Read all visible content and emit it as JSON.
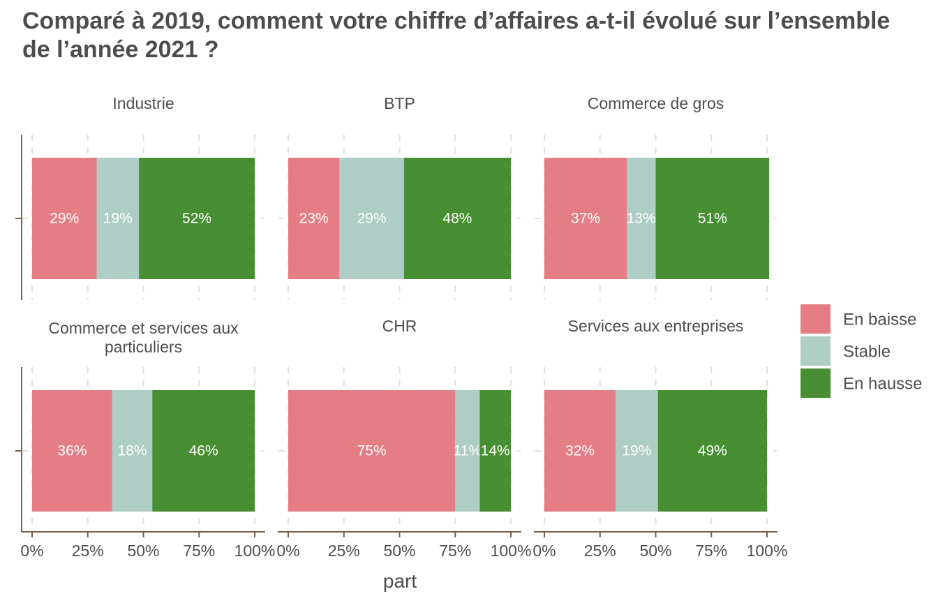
{
  "chart_data": {
    "type": "bar",
    "title": "Comparé à 2019, comment votre chiffre d’affaires a-t-il évolué sur l’ensemble de l’année 2021 ?",
    "xlabel": "part",
    "ylabel": "",
    "xlim": [
      0,
      100
    ],
    "x_ticks": [
      "0%",
      "25%",
      "50%",
      "75%",
      "100%"
    ],
    "grid": true,
    "orientation": "horizontal",
    "stacked": true,
    "legend_position": "right",
    "series": [
      {
        "name": "En baisse",
        "color": "#E57D84"
      },
      {
        "name": "Stable",
        "color": "#AECDC4"
      },
      {
        "name": "En hausse",
        "color": "#478F32"
      }
    ],
    "facets": [
      {
        "title": [
          "Industrie"
        ],
        "values": [
          29,
          19,
          52
        ],
        "labels": [
          "29%",
          "19%",
          "52%"
        ]
      },
      {
        "title": [
          "BTP"
        ],
        "values": [
          23,
          29,
          48
        ],
        "labels": [
          "23%",
          "29%",
          "48%"
        ]
      },
      {
        "title": [
          "Commerce de gros"
        ],
        "values": [
          37,
          13,
          51
        ],
        "labels": [
          "37%",
          "13%",
          "51%"
        ]
      },
      {
        "title": [
          "Commerce et services aux",
          "particuliers"
        ],
        "values": [
          36,
          18,
          46
        ],
        "labels": [
          "36%",
          "18%",
          "46%"
        ]
      },
      {
        "title": [
          "CHR"
        ],
        "values": [
          75,
          11,
          14
        ],
        "labels": [
          "75%",
          "11%",
          "14%"
        ]
      },
      {
        "title": [
          "Services aux entreprises"
        ],
        "values": [
          32,
          19,
          49
        ],
        "labels": [
          "32%",
          "19%",
          "49%"
        ]
      }
    ]
  }
}
